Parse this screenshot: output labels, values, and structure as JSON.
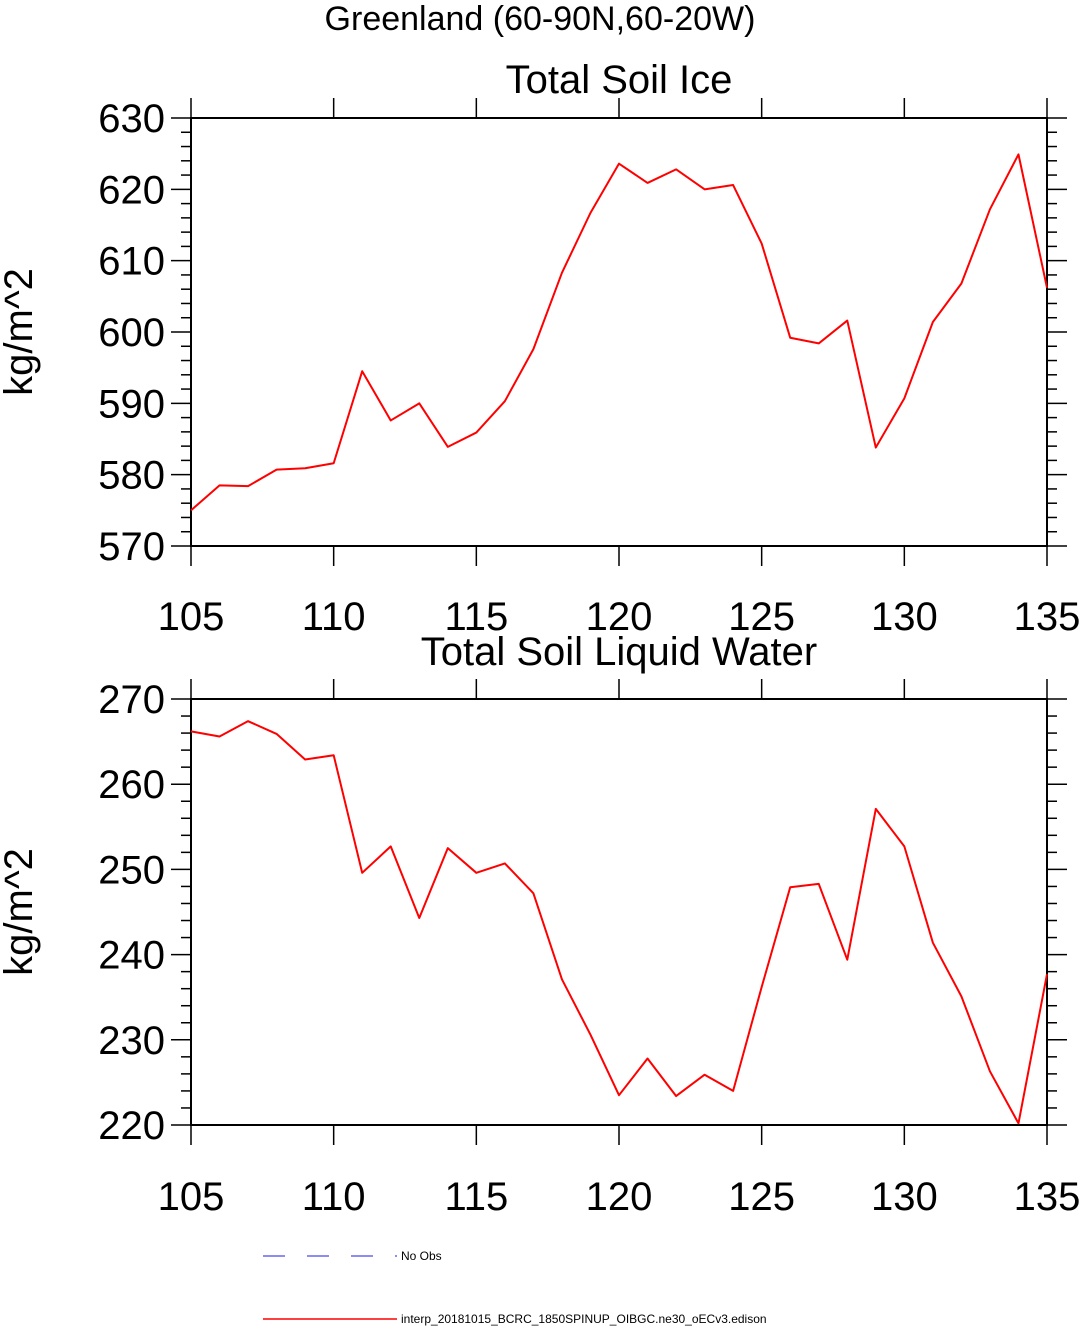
{
  "suptitle": "Greenland (60-90N,60-20W)",
  "legend": {
    "items": [
      {
        "label": "No Obs",
        "color": "#6666ee",
        "style": "dashed"
      },
      {
        "label": "interp_20181015_BCRC_1850SPINUP_OIBGC.ne30_oECv3.edison",
        "color": "#ff0000",
        "style": "solid"
      }
    ]
  },
  "chart_data": [
    {
      "type": "line",
      "title": "Total Soil Ice",
      "xlabel": "",
      "ylabel": "kg/m^2",
      "xlim": [
        105,
        135
      ],
      "ylim": [
        570,
        630
      ],
      "xticks": [
        105,
        110,
        115,
        120,
        125,
        130,
        135
      ],
      "yticks": [
        570,
        580,
        590,
        600,
        610,
        620,
        630
      ],
      "grid": false,
      "x": [
        105,
        106,
        107,
        108,
        109,
        110,
        111,
        112,
        113,
        114,
        115,
        116,
        117,
        118,
        119,
        120,
        121,
        122,
        123,
        124,
        125,
        126,
        127,
        128,
        129,
        130,
        131,
        132,
        133,
        134,
        135
      ],
      "series": [
        {
          "color": "#ff0000",
          "values": [
            575,
            578.5,
            578.4,
            580.7,
            580.9,
            581.6,
            594.5,
            587.6,
            590,
            583.9,
            585.9,
            590.3,
            597.6,
            608.3,
            616.7,
            623.6,
            620.9,
            622.8,
            620,
            620.6,
            612.4,
            599.2,
            598.4,
            601.6,
            583.8,
            590.7,
            601.4,
            606.8,
            617.2,
            624.9,
            606.2
          ]
        }
      ]
    },
    {
      "type": "line",
      "title": "Total Soil Liquid Water",
      "xlabel": "",
      "ylabel": "kg/m^2",
      "xlim": [
        105,
        135
      ],
      "ylim": [
        220,
        270
      ],
      "xticks": [
        105,
        110,
        115,
        120,
        125,
        130,
        135
      ],
      "yticks": [
        220,
        230,
        240,
        250,
        260,
        270
      ],
      "grid": false,
      "x": [
        105,
        106,
        107,
        108,
        109,
        110,
        111,
        112,
        113,
        114,
        115,
        116,
        117,
        118,
        119,
        120,
        121,
        122,
        123,
        124,
        125,
        126,
        127,
        128,
        129,
        130,
        131,
        132,
        133,
        134,
        135
      ],
      "series": [
        {
          "color": "#ff0000",
          "values": [
            266.2,
            265.6,
            267.4,
            265.9,
            262.9,
            263.4,
            249.6,
            252.7,
            244.3,
            252.5,
            249.6,
            250.7,
            247.2,
            237.1,
            230.6,
            223.5,
            227.8,
            223.4,
            225.9,
            224,
            236.2,
            247.9,
            248.3,
            239.4,
            257.1,
            252.7,
            241.4,
            235.1,
            226.3,
            220.2,
            237.7
          ]
        }
      ]
    }
  ]
}
